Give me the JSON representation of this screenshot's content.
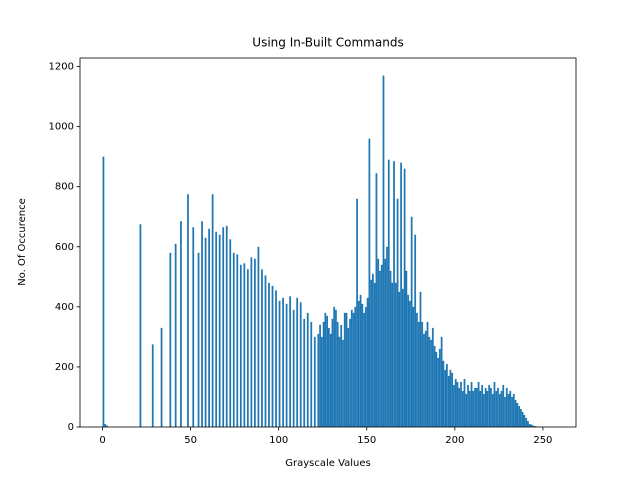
{
  "chart_data": {
    "type": "histogram",
    "title": "Using In-Built Commands",
    "x_label": "Grayscale Values",
    "y_label": "No. Of Occurence",
    "color": "#1f77b4",
    "bins": [
      0,
      1,
      2,
      3,
      4,
      5,
      6,
      7,
      8,
      9,
      10,
      11,
      12,
      13,
      14,
      15,
      16,
      17,
      18,
      19,
      20,
      21,
      22,
      23,
      24,
      25,
      26,
      27,
      28,
      29,
      30,
      31,
      32,
      33,
      34,
      35,
      36,
      37,
      38,
      39,
      40,
      41,
      42,
      43,
      44,
      45,
      46,
      47,
      48,
      49,
      50,
      51,
      52,
      53,
      54,
      55,
      56,
      57,
      58,
      59,
      60,
      61,
      62,
      63,
      64,
      65,
      66,
      67,
      68,
      69,
      70,
      71,
      72,
      73,
      74,
      75,
      76,
      77,
      78,
      79,
      80,
      81,
      82,
      83,
      84,
      85,
      86,
      87,
      88,
      89,
      90,
      91,
      92,
      93,
      94,
      95,
      96,
      97,
      98,
      99,
      100,
      101,
      102,
      103,
      104,
      105,
      106,
      107,
      108,
      109,
      110,
      111,
      112,
      113,
      114,
      115,
      116,
      117,
      118,
      119,
      120,
      121,
      122,
      123,
      124,
      125,
      126,
      127,
      128,
      129,
      130,
      131,
      132,
      133,
      134,
      135,
      136,
      137,
      138,
      139,
      140,
      141,
      142,
      143,
      144,
      145,
      146,
      147,
      148,
      149,
      150,
      151,
      152,
      153,
      154,
      155,
      156,
      157,
      158,
      159,
      160,
      161,
      162,
      163,
      164,
      165,
      166,
      167,
      168,
      169,
      170,
      171,
      172,
      173,
      174,
      175,
      176,
      177,
      178,
      179,
      180,
      181,
      182,
      183,
      184,
      185,
      186,
      187,
      188,
      189,
      190,
      191,
      192,
      193,
      194,
      195,
      196,
      197,
      198,
      199,
      200,
      201,
      202,
      203,
      204,
      205,
      206,
      207,
      208,
      209,
      210,
      211,
      212,
      213,
      214,
      215,
      216,
      217,
      218,
      219,
      220,
      221,
      222,
      223,
      224,
      225,
      226,
      227,
      228,
      229,
      230,
      231,
      232,
      233,
      234,
      235,
      236,
      237,
      238,
      239,
      240,
      241,
      242,
      243,
      244,
      245,
      246,
      247,
      248,
      249,
      250,
      251,
      252,
      253,
      254,
      255,
      256
    ],
    "values": [
      900,
      10,
      5,
      0,
      0,
      0,
      0,
      0,
      0,
      0,
      0,
      0,
      0,
      0,
      0,
      0,
      0,
      0,
      0,
      0,
      0,
      675,
      0,
      0,
      0,
      0,
      0,
      0,
      275,
      0,
      0,
      0,
      0,
      330,
      0,
      0,
      0,
      0,
      580,
      0,
      0,
      610,
      0,
      0,
      685,
      0,
      0,
      0,
      775,
      0,
      0,
      665,
      0,
      0,
      580,
      0,
      685,
      0,
      630,
      0,
      660,
      0,
      775,
      0,
      650,
      0,
      640,
      0,
      665,
      0,
      670,
      0,
      625,
      0,
      580,
      0,
      575,
      0,
      540,
      0,
      545,
      0,
      525,
      0,
      565,
      0,
      560,
      0,
      600,
      0,
      525,
      0,
      505,
      0,
      480,
      0,
      470,
      0,
      455,
      0,
      420,
      0,
      430,
      0,
      410,
      0,
      435,
      0,
      390,
      0,
      430,
      0,
      415,
      0,
      360,
      0,
      380,
      0,
      350,
      0,
      300,
      0,
      310,
      340,
      300,
      350,
      380,
      370,
      330,
      310,
      360,
      400,
      390,
      350,
      300,
      340,
      290,
      380,
      380,
      330,
      360,
      390,
      380,
      400,
      760,
      420,
      440,
      410,
      380,
      400,
      430,
      960,
      490,
      510,
      480,
      845,
      560,
      520,
      540,
      1170,
      560,
      600,
      890,
      520,
      480,
      885,
      480,
      760,
      450,
      880,
      460,
      860,
      520,
      440,
      420,
      700,
      400,
      640,
      380,
      350,
      450,
      350,
      310,
      320,
      350,
      300,
      290,
      330,
      270,
      250,
      230,
      260,
      300,
      220,
      190,
      210,
      170,
      190,
      180,
      140,
      160,
      150,
      130,
      150,
      120,
      160,
      110,
      140,
      120,
      150,
      120,
      130,
      130,
      150,
      120,
      140,
      110,
      130,
      120,
      140,
      130,
      110,
      150,
      120,
      130,
      110,
      120,
      140,
      100,
      130,
      110,
      120,
      100,
      110,
      90,
      80,
      70,
      60,
      50,
      40,
      30,
      20,
      10,
      8,
      5,
      3,
      2,
      1,
      0,
      0,
      0,
      0,
      0,
      0,
      0,
      0
    ],
    "xlim": [
      -12.8,
      268.8
    ],
    "ylim": [
      0,
      1228.5
    ],
    "xticks": [
      0,
      50,
      100,
      150,
      200,
      250
    ],
    "yticks": [
      0,
      200,
      400,
      600,
      800,
      1000,
      1200
    ],
    "grid": false
  }
}
